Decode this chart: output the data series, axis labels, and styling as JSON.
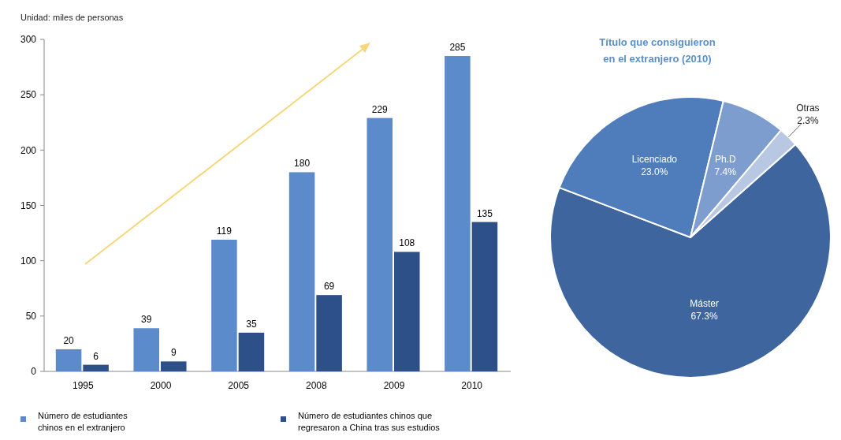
{
  "chart_data": [
    {
      "type": "bar",
      "ylabel": "Unidad: miles de personas",
      "categories": [
        "1995",
        "2000",
        "2005",
        "2008",
        "2009",
        "2010"
      ],
      "series": [
        {
          "name": "Número de estudiantes chinos en el extranjero",
          "color": "#5b8bca",
          "values": [
            20,
            39,
            119,
            180,
            229,
            285
          ]
        },
        {
          "name": "Número de estudiantes chinos que regresaron a China tras sus estudios",
          "color": "#2d5089",
          "values": [
            6,
            9,
            35,
            69,
            108,
            135
          ]
        }
      ],
      "ylim": [
        0,
        300
      ],
      "yticks": [
        0,
        50,
        100,
        150,
        200,
        250,
        300
      ],
      "grid": false,
      "legend": "bottom",
      "data_labels": true
    },
    {
      "type": "pie",
      "title": "Título que consiguieron en el extranjero (2010)",
      "categories": [
        "Máster",
        "Licenciado",
        "Ph.D",
        "Otras"
      ],
      "values": [
        67.3,
        23.0,
        7.4,
        2.3
      ],
      "colors": [
        "#3e659d",
        "#4f7cba",
        "#7e9dcf",
        "#b8c7e2"
      ],
      "value_labels": [
        "67.3%",
        "23.0%",
        "7.4%",
        "2.3%"
      ]
    }
  ]
}
